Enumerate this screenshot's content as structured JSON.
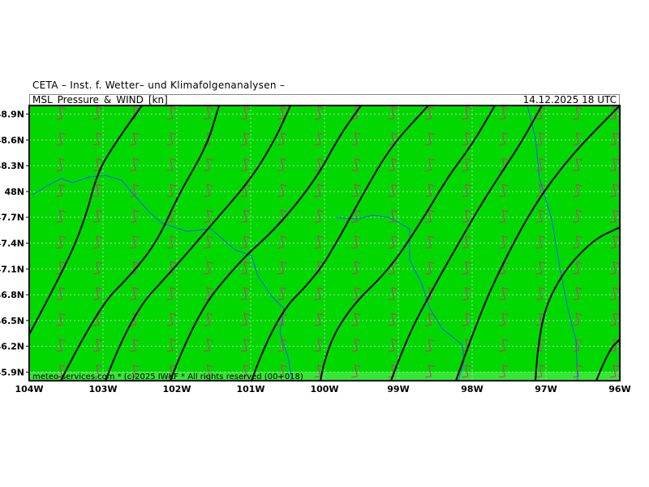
{
  "title": "CETA – Inst. f. Wetter– und Klimafolgenanalysen –",
  "header": {
    "product": "MSL_Pressure_&_WIND_[kn]",
    "valid_time": "14.12.2025 18 UTC"
  },
  "map": {
    "extent": {
      "lon": [
        -104,
        -96
      ],
      "lat": [
        45.8,
        49.0
      ]
    },
    "lat_labels": [
      "48.9N",
      "48.6N",
      "48.3N",
      "48N",
      "47.7N",
      "47.4N",
      "47.1N",
      "46.8N",
      "46.5N",
      "46.2N",
      "45.9N"
    ],
    "lat_values": [
      48.9,
      48.6,
      48.3,
      48.0,
      47.7,
      47.4,
      47.1,
      46.8,
      46.5,
      46.2,
      45.9
    ],
    "lon_labels": [
      "104W",
      "103W",
      "102W",
      "101W",
      "100W",
      "99W",
      "98W",
      "97W",
      "96W"
    ],
    "lon_values": [
      -104,
      -103,
      -102,
      -101,
      -100,
      -99,
      -98,
      -97,
      -96
    ],
    "colors": {
      "land": "#00d800",
      "footer_band": "#33e833",
      "isobar": "#000000",
      "river": "#1e5cff",
      "wind_barb": "#d0307a",
      "grid": "#c8c8c8"
    },
    "copyright": "meteo-services.com * (c)2025 IWKF * All rights reserved (00+018)"
  }
}
